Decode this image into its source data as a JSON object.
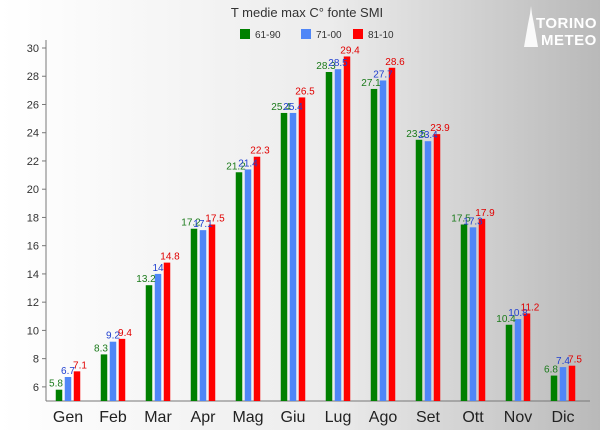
{
  "brand": {
    "name_top": "TORINO",
    "name_bottom": "METEO"
  },
  "chart_data": {
    "type": "bar",
    "title": "T medie max C° fonte SMI",
    "xlabel": "",
    "ylabel": "",
    "ylim": [
      5,
      30
    ],
    "yticks": [
      6,
      8,
      10,
      12,
      14,
      16,
      18,
      20,
      22,
      24,
      26,
      28,
      30
    ],
    "grid": false,
    "legend_position": "top",
    "categories": [
      "Gen",
      "Feb",
      "Mar",
      "Apr",
      "Mag",
      "Giu",
      "Lug",
      "Ago",
      "Set",
      "Ott",
      "Nov",
      "Dic"
    ],
    "series": [
      {
        "name": "61-90",
        "color": "#008000",
        "label_color": "#1a7a1a",
        "values": [
          5.8,
          8.3,
          13.2,
          17.2,
          21.2,
          25.4,
          28.3,
          27.1,
          23.5,
          17.5,
          10.4,
          6.8
        ]
      },
      {
        "name": "71-00",
        "color": "#4f86f7",
        "label_color": "#1f3fd0",
        "values": [
          6.7,
          9.2,
          14,
          17.1,
          21.4,
          25.4,
          28.5,
          27.7,
          23.4,
          17.3,
          10.8,
          7.4
        ]
      },
      {
        "name": "81-10",
        "color": "#ff0000",
        "label_color": "#e00000",
        "values": [
          7.1,
          9.4,
          14.8,
          17.5,
          22.3,
          26.5,
          29.4,
          28.6,
          23.9,
          17.9,
          11.2,
          7.5
        ]
      }
    ]
  }
}
